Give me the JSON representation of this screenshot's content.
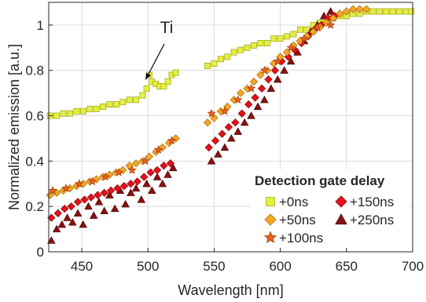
{
  "chart_data": {
    "type": "scatter",
    "title": "",
    "xlabel": "Wavelength [nm]",
    "ylabel": "Normalized emission [a.u.]",
    "xlim": [
      425,
      700
    ],
    "ylim": [
      0,
      1.1
    ],
    "xticks": [
      450,
      500,
      550,
      600,
      650,
      700
    ],
    "yticks": [
      0,
      0.2,
      0.4,
      0.6,
      0.8,
      1
    ],
    "xtick_labels": [
      "450",
      "500",
      "550",
      "600",
      "650",
      "700"
    ],
    "ytick_labels": [
      "0",
      "0.2",
      "0.4",
      "0.6",
      "0.8",
      "1"
    ],
    "grid": true,
    "legend": {
      "title": "Detection gate delay",
      "placement": "bottom-right",
      "columns": 2
    },
    "annotation": {
      "text": "Ti",
      "x": 500,
      "y": 0.78
    },
    "series": [
      {
        "name": "+0ns",
        "marker": "square",
        "color": "#e6f03c",
        "edge": "#9aa318",
        "points": [
          [
            426,
            0.6
          ],
          [
            431,
            0.6
          ],
          [
            436,
            0.61
          ],
          [
            441,
            0.61
          ],
          [
            446,
            0.62
          ],
          [
            451,
            0.62
          ],
          [
            456,
            0.63
          ],
          [
            461,
            0.63
          ],
          [
            466,
            0.64
          ],
          [
            471,
            0.65
          ],
          [
            476,
            0.65
          ],
          [
            481,
            0.66
          ],
          [
            486,
            0.67
          ],
          [
            491,
            0.67
          ],
          [
            496,
            0.69
          ],
          [
            499,
            0.72
          ],
          [
            501,
            0.78
          ],
          [
            503,
            0.75
          ],
          [
            506,
            0.74
          ],
          [
            509,
            0.73
          ],
          [
            512,
            0.73
          ],
          [
            515,
            0.75
          ],
          [
            518,
            0.78
          ],
          [
            521,
            0.79
          ],
          [
            545,
            0.82
          ],
          [
            550,
            0.83
          ],
          [
            555,
            0.85
          ],
          [
            560,
            0.86
          ],
          [
            565,
            0.88
          ],
          [
            570,
            0.89
          ],
          [
            575,
            0.9
          ],
          [
            580,
            0.91
          ],
          [
            585,
            0.92
          ],
          [
            590,
            0.92
          ],
          [
            595,
            0.94
          ],
          [
            600,
            0.94
          ],
          [
            605,
            0.95
          ],
          [
            610,
            0.96
          ],
          [
            615,
            0.98
          ],
          [
            620,
            0.98
          ],
          [
            625,
            1.0
          ],
          [
            630,
            1.01
          ],
          [
            635,
            1.02
          ],
          [
            640,
            1.03
          ],
          [
            645,
            1.04
          ],
          [
            650,
            1.04
          ],
          [
            655,
            1.05
          ],
          [
            660,
            1.05
          ],
          [
            665,
            1.06
          ],
          [
            670,
            1.06
          ],
          [
            675,
            1.06
          ],
          [
            680,
            1.06
          ],
          [
            685,
            1.06
          ],
          [
            690,
            1.06
          ],
          [
            695,
            1.06
          ],
          [
            699,
            1.06
          ]
        ]
      },
      {
        "name": "+50ns",
        "marker": "diamond",
        "color": "#f5a623",
        "edge": "#a86a10",
        "points": [
          [
            426,
            0.25
          ],
          [
            431,
            0.26
          ],
          [
            436,
            0.27
          ],
          [
            441,
            0.28
          ],
          [
            446,
            0.29
          ],
          [
            451,
            0.3
          ],
          [
            456,
            0.31
          ],
          [
            461,
            0.32
          ],
          [
            466,
            0.33
          ],
          [
            471,
            0.34
          ],
          [
            476,
            0.35
          ],
          [
            481,
            0.36
          ],
          [
            486,
            0.38
          ],
          [
            491,
            0.39
          ],
          [
            496,
            0.4
          ],
          [
            501,
            0.42
          ],
          [
            506,
            0.44
          ],
          [
            511,
            0.46
          ],
          [
            516,
            0.48
          ],
          [
            521,
            0.5
          ],
          [
            545,
            0.57
          ],
          [
            550,
            0.59
          ],
          [
            555,
            0.62
          ],
          [
            560,
            0.64
          ],
          [
            565,
            0.67
          ],
          [
            570,
            0.7
          ],
          [
            575,
            0.72
          ],
          [
            580,
            0.75
          ],
          [
            585,
            0.78
          ],
          [
            590,
            0.8
          ],
          [
            595,
            0.83
          ],
          [
            600,
            0.86
          ],
          [
            605,
            0.88
          ],
          [
            610,
            0.91
          ],
          [
            615,
            0.93
          ],
          [
            620,
            0.95
          ],
          [
            625,
            0.97
          ],
          [
            630,
            0.99
          ],
          [
            635,
            1.01
          ],
          [
            640,
            1.03
          ],
          [
            645,
            1.05
          ],
          [
            650,
            1.06
          ],
          [
            655,
            1.07
          ],
          [
            660,
            1.07
          ],
          [
            665,
            1.07
          ]
        ]
      },
      {
        "name": "+100ns",
        "marker": "star",
        "color": "#e8601c",
        "edge": "#a33d0a",
        "points": [
          [
            428,
            0.27
          ],
          [
            438,
            0.28
          ],
          [
            448,
            0.3
          ],
          [
            458,
            0.31
          ],
          [
            468,
            0.33
          ],
          [
            478,
            0.35
          ],
          [
            488,
            0.36
          ],
          [
            498,
            0.4
          ],
          [
            508,
            0.45
          ],
          [
            518,
            0.49
          ],
          [
            548,
            0.61
          ],
          [
            558,
            0.62
          ],
          [
            568,
            0.67
          ],
          [
            578,
            0.72
          ],
          [
            588,
            0.8
          ],
          [
            598,
            0.84
          ],
          [
            608,
            0.9
          ],
          [
            618,
            0.94
          ],
          [
            628,
            0.99
          ],
          [
            638,
            1.0
          ]
        ]
      },
      {
        "name": "+150ns",
        "marker": "diamond",
        "color": "#e0121a",
        "edge": "#8a0a0e",
        "points": [
          [
            427,
            0.15
          ],
          [
            432,
            0.17
          ],
          [
            437,
            0.19
          ],
          [
            442,
            0.2
          ],
          [
            447,
            0.22
          ],
          [
            452,
            0.23
          ],
          [
            457,
            0.24
          ],
          [
            462,
            0.25
          ],
          [
            467,
            0.26
          ],
          [
            472,
            0.27
          ],
          [
            477,
            0.28
          ],
          [
            482,
            0.29
          ],
          [
            487,
            0.3
          ],
          [
            492,
            0.31
          ],
          [
            497,
            0.33
          ],
          [
            502,
            0.35
          ],
          [
            507,
            0.36
          ],
          [
            512,
            0.38
          ],
          [
            517,
            0.39
          ],
          [
            546,
            0.46
          ],
          [
            551,
            0.49
          ],
          [
            556,
            0.52
          ],
          [
            561,
            0.55
          ],
          [
            566,
            0.57
          ],
          [
            571,
            0.61
          ],
          [
            576,
            0.65
          ],
          [
            581,
            0.68
          ],
          [
            586,
            0.72
          ],
          [
            591,
            0.76
          ],
          [
            596,
            0.8
          ],
          [
            601,
            0.84
          ],
          [
            606,
            0.86
          ],
          [
            611,
            0.89
          ],
          [
            616,
            0.92
          ],
          [
            621,
            0.95
          ],
          [
            626,
            0.98
          ],
          [
            631,
            1.0
          ],
          [
            636,
            1.03
          ],
          [
            641,
            1.04
          ]
        ]
      },
      {
        "name": "+250ns",
        "marker": "triangle",
        "color": "#8b1010",
        "edge": "#4a0505",
        "points": [
          [
            427,
            0.05
          ],
          [
            431,
            0.1
          ],
          [
            435,
            0.12
          ],
          [
            439,
            0.15
          ],
          [
            443,
            0.13
          ],
          [
            447,
            0.17
          ],
          [
            451,
            0.12
          ],
          [
            455,
            0.2
          ],
          [
            459,
            0.16
          ],
          [
            463,
            0.22
          ],
          [
            467,
            0.18
          ],
          [
            471,
            0.25
          ],
          [
            475,
            0.19
          ],
          [
            479,
            0.27
          ],
          [
            483,
            0.21
          ],
          [
            487,
            0.26
          ],
          [
            491,
            0.28
          ],
          [
            495,
            0.23
          ],
          [
            499,
            0.3
          ],
          [
            503,
            0.27
          ],
          [
            507,
            0.33
          ],
          [
            511,
            0.3
          ],
          [
            515,
            0.34
          ],
          [
            519,
            0.37
          ],
          [
            548,
            0.4
          ],
          [
            553,
            0.43
          ],
          [
            558,
            0.46
          ],
          [
            563,
            0.5
          ],
          [
            568,
            0.53
          ],
          [
            573,
            0.57
          ],
          [
            578,
            0.6
          ],
          [
            583,
            0.64
          ],
          [
            588,
            0.67
          ],
          [
            593,
            0.72
          ],
          [
            598,
            0.76
          ],
          [
            603,
            0.8
          ],
          [
            608,
            0.84
          ],
          [
            613,
            0.88
          ],
          [
            618,
            0.93
          ],
          [
            623,
            0.97
          ],
          [
            628,
            1.0
          ],
          [
            633,
            1.04
          ],
          [
            638,
            1.06
          ]
        ]
      }
    ]
  }
}
